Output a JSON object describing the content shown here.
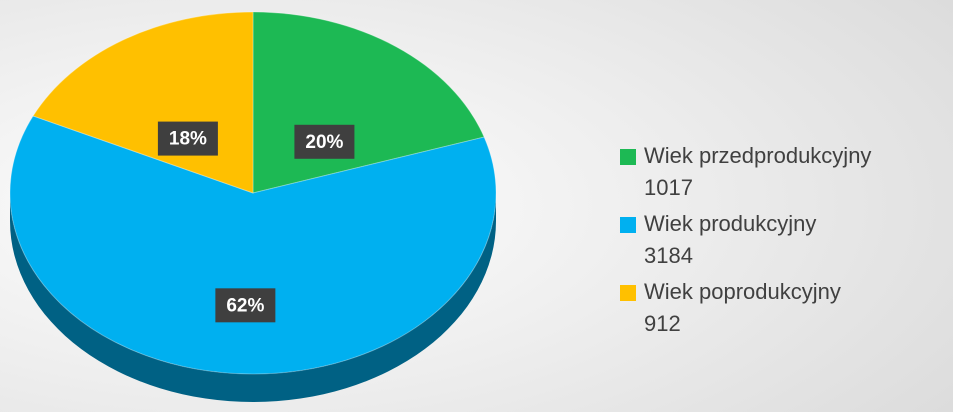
{
  "chart_data": {
    "type": "pie",
    "categories": [
      "Wiek przedprodukcyjny",
      "Wiek produkcyjny",
      "Wiek poprodukcyjny"
    ],
    "counts": [
      "1017",
      "3184",
      "912"
    ],
    "values": [
      20,
      62,
      18
    ],
    "value_labels": [
      "20%",
      "62%",
      "18%"
    ],
    "colors": [
      "#1db954",
      "#00b0f0",
      "#ffc000"
    ],
    "legend": "right"
  }
}
